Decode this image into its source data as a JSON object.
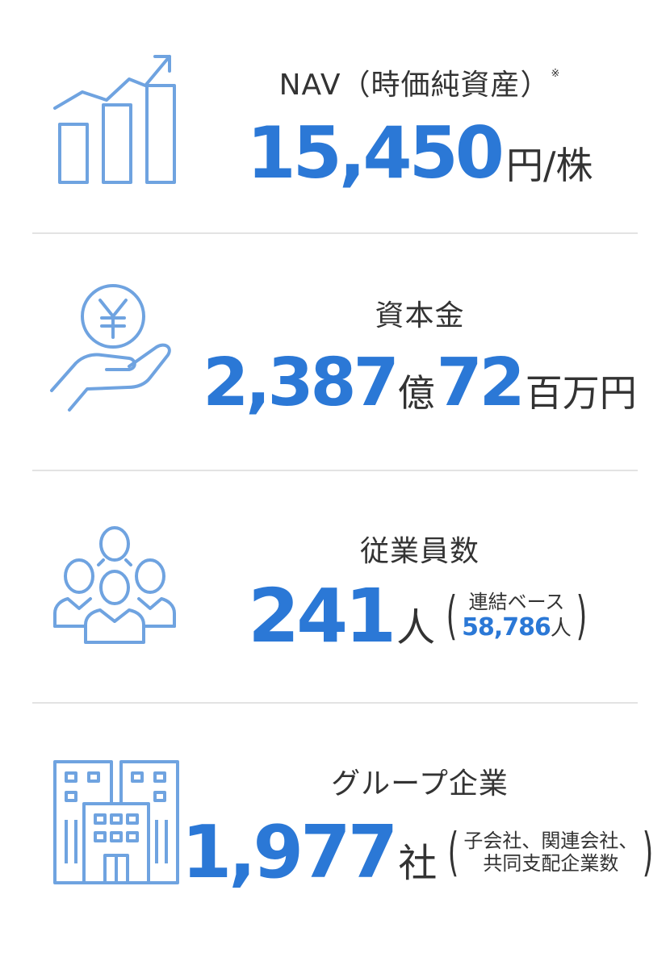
{
  "accent_color": "#2b78d6",
  "icon_color": "#6fa3e0",
  "items": [
    {
      "icon": "growth-bar-chart-icon",
      "label": "NAV（時価純資産）",
      "label_mark": "※",
      "value": "15,450",
      "unit": "円/株"
    },
    {
      "icon": "yen-coin-hand-icon",
      "label": "資本金",
      "value_1": "2,387",
      "unit_1": "億",
      "value_2": "72",
      "unit_2": "百万円"
    },
    {
      "icon": "people-group-icon",
      "label": "従業員数",
      "value": "241",
      "unit": "人",
      "note_line": "連結ベース",
      "note_value": "58,786",
      "note_unit": "人"
    },
    {
      "icon": "office-buildings-icon",
      "label": "グループ企業",
      "value": "1,977",
      "unit": "社",
      "note_line_1": "子会社、関連会社、",
      "note_line_2": "共同支配企業数"
    }
  ]
}
